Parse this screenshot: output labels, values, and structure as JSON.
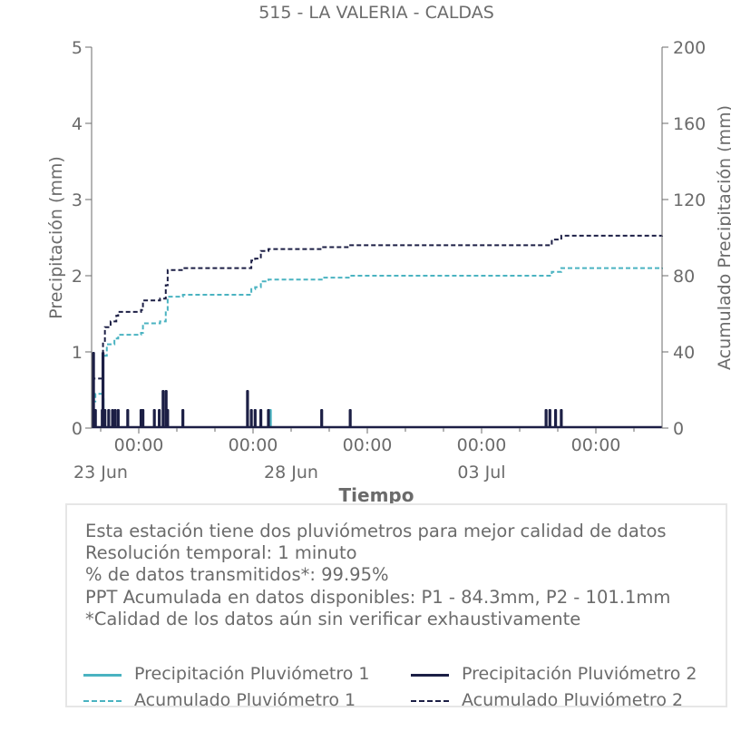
{
  "chart_data": {
    "type": "bar+line",
    "title": "515 - LA VALERIA - CALDAS",
    "xlabel": "Tiempo",
    "ylabel": "Precipitación (mm)",
    "y2label": "Acumulado Precipitación (mm)",
    "ylim": [
      0,
      5
    ],
    "y2lim": [
      0,
      200
    ],
    "yticks": [
      "0",
      "1",
      "2",
      "3",
      "4",
      "5"
    ],
    "y2ticks": [
      "0",
      "40",
      "80",
      "120",
      "160",
      "200"
    ],
    "xlim_days": [
      0,
      15
    ],
    "x_time_ticks": [
      "00:00",
      "00:00",
      "00:00",
      "00:00",
      "00:00"
    ],
    "x_date_ticks": [
      "23 Jun",
      "28 Jun",
      "03 Jul"
    ],
    "colors": {
      "p1": "#4ab3c1",
      "p2": "#1c1f45"
    },
    "series": [
      {
        "name": "Precipitación Pluviómetro 1",
        "kind": "bar",
        "axis": "left",
        "color": "#4ab3c1",
        "points": [
          [
            0.06,
            0.25
          ],
          [
            0.3,
            0.4
          ],
          [
            4.7,
            0.25
          ]
        ]
      },
      {
        "name": "Precipitación Pluviómetro 2",
        "kind": "bar",
        "axis": "left",
        "color": "#1c1f45",
        "points": [
          [
            0.05,
            1.0
          ],
          [
            0.1,
            0.25
          ],
          [
            0.28,
            0.25
          ],
          [
            0.3,
            1.0
          ],
          [
            0.35,
            0.25
          ],
          [
            0.45,
            0.25
          ],
          [
            0.55,
            0.25
          ],
          [
            0.62,
            0.25
          ],
          [
            0.7,
            0.25
          ],
          [
            0.95,
            0.25
          ],
          [
            1.3,
            0.25
          ],
          [
            1.35,
            0.25
          ],
          [
            1.65,
            0.25
          ],
          [
            1.78,
            0.25
          ],
          [
            1.88,
            0.5
          ],
          [
            1.96,
            0.5
          ],
          [
            2.0,
            0.25
          ],
          [
            2.4,
            0.25
          ],
          [
            4.1,
            0.5
          ],
          [
            4.2,
            0.25
          ],
          [
            4.3,
            0.25
          ],
          [
            4.45,
            0.25
          ],
          [
            4.65,
            0.25
          ],
          [
            6.05,
            0.25
          ],
          [
            6.8,
            0.25
          ],
          [
            11.95,
            0.25
          ],
          [
            12.05,
            0.25
          ],
          [
            12.2,
            0.25
          ],
          [
            12.35,
            0.25
          ]
        ]
      },
      {
        "name": "Acumulado Pluviómetro 1",
        "kind": "step-dashed",
        "axis": "right",
        "color": "#4ab3c1",
        "points": [
          [
            0,
            14
          ],
          [
            0.1,
            18
          ],
          [
            0.3,
            38
          ],
          [
            0.4,
            44
          ],
          [
            0.6,
            47
          ],
          [
            0.7,
            49
          ],
          [
            1.3,
            50
          ],
          [
            1.35,
            55
          ],
          [
            1.8,
            56
          ],
          [
            1.95,
            62
          ],
          [
            2.0,
            69
          ],
          [
            2.4,
            70
          ],
          [
            4.1,
            70
          ],
          [
            4.2,
            73
          ],
          [
            4.3,
            74
          ],
          [
            4.45,
            77
          ],
          [
            4.65,
            78
          ],
          [
            6.05,
            79
          ],
          [
            6.8,
            80
          ],
          [
            11.95,
            80
          ],
          [
            12.1,
            82
          ],
          [
            12.35,
            84
          ],
          [
            15,
            84.3
          ]
        ]
      },
      {
        "name": "Acumulado Pluviómetro 2",
        "kind": "step-dashed",
        "axis": "right",
        "color": "#1c1f45",
        "points": [
          [
            0,
            18
          ],
          [
            0.05,
            26
          ],
          [
            0.3,
            45
          ],
          [
            0.35,
            53
          ],
          [
            0.5,
            56
          ],
          [
            0.65,
            59
          ],
          [
            0.7,
            61
          ],
          [
            1.3,
            62
          ],
          [
            1.35,
            67
          ],
          [
            1.8,
            68
          ],
          [
            1.95,
            75
          ],
          [
            2.0,
            83
          ],
          [
            2.4,
            84
          ],
          [
            4.1,
            84
          ],
          [
            4.2,
            88
          ],
          [
            4.3,
            89
          ],
          [
            4.45,
            93
          ],
          [
            4.65,
            94
          ],
          [
            6.05,
            95
          ],
          [
            6.8,
            96
          ],
          [
            11.95,
            96
          ],
          [
            12.1,
            99
          ],
          [
            12.35,
            101
          ],
          [
            15,
            101.1
          ]
        ]
      }
    ],
    "legend_position": "bottom"
  },
  "info": {
    "lines": [
      "Esta estación tiene dos pluviómetros para mejor calidad de datos",
      "Resolución temporal: 1 minuto",
      "% de datos transmitidos*: 99.95%",
      "PPT Acumulada en datos disponibles: P1 - 84.3mm, P2 - 101.1mm",
      "*Calidad de los datos aún sin verificar exhaustivamente"
    ]
  },
  "legend": [
    {
      "label": "Precipitación Pluviómetro 1",
      "color": "#4ab3c1",
      "style": "solid"
    },
    {
      "label": "Precipitación Pluviómetro 2",
      "color": "#1c1f45",
      "style": "solid"
    },
    {
      "label": "Acumulado Pluviómetro 1",
      "color": "#4ab3c1",
      "style": "dashed"
    },
    {
      "label": "Acumulado Pluviómetro 2",
      "color": "#1c1f45",
      "style": "dashed"
    }
  ]
}
